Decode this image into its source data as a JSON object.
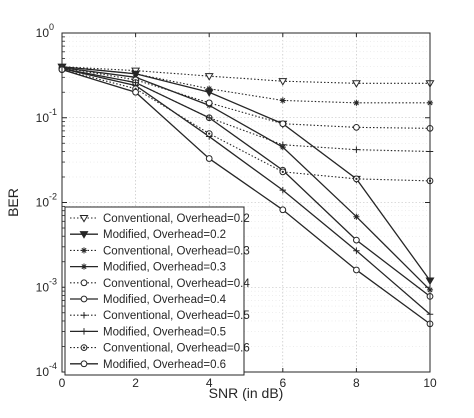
{
  "chart_data": {
    "type": "line",
    "xlabel": "SNR (in dB)",
    "ylabel": "BER",
    "xlim": [
      0,
      10
    ],
    "ylim": [
      0.0001,
      1
    ],
    "yscale": "log",
    "grid": true,
    "legend_position": "bottom-left",
    "x_ticks": [
      "0",
      "2",
      "4",
      "6",
      "8",
      "10"
    ],
    "y_ticks": [
      {
        "base": "10",
        "exp": "0",
        "value": 1
      },
      {
        "base": "10",
        "exp": "-1",
        "value": 0.1
      },
      {
        "base": "10",
        "exp": "-2",
        "value": 0.01
      },
      {
        "base": "10",
        "exp": "-3",
        "value": 0.001
      },
      {
        "base": "10",
        "exp": "-4",
        "value": 0.0001
      }
    ],
    "x": [
      0,
      2,
      4,
      6,
      8,
      10
    ],
    "series": [
      {
        "name": "Conventional, Overhead=0.2",
        "line": "dotted",
        "marker": "triangle-down-open",
        "values": [
          0.4,
          0.36,
          0.31,
          0.27,
          0.255,
          0.255
        ]
      },
      {
        "name": "Modified, Overhead=0.2",
        "line": "solid",
        "marker": "triangle-down-filled",
        "values": [
          0.4,
          0.33,
          0.2,
          0.085,
          0.019,
          0.0012
        ]
      },
      {
        "name": "Conventional, Overhead=0.3",
        "line": "dotted",
        "marker": "asterisk",
        "values": [
          0.4,
          0.33,
          0.22,
          0.16,
          0.15,
          0.15
        ]
      },
      {
        "name": "Modified, Overhead=0.3",
        "line": "solid",
        "marker": "asterisk",
        "values": [
          0.39,
          0.3,
          0.14,
          0.045,
          0.0068,
          0.00093
        ]
      },
      {
        "name": "Conventional, Overhead=0.4",
        "line": "dotted",
        "marker": "circle-open",
        "values": [
          0.39,
          0.28,
          0.15,
          0.085,
          0.077,
          0.075
        ]
      },
      {
        "name": "Modified, Overhead=0.4",
        "line": "solid",
        "marker": "circle-open",
        "values": [
          0.38,
          0.26,
          0.1,
          0.024,
          0.0036,
          0.00078
        ]
      },
      {
        "name": "Conventional, Overhead=0.5",
        "line": "dotted",
        "marker": "plus",
        "values": [
          0.38,
          0.26,
          0.1,
          0.048,
          0.042,
          0.04
        ]
      },
      {
        "name": "Modified, Overhead=0.5",
        "line": "solid",
        "marker": "plus",
        "values": [
          0.38,
          0.24,
          0.06,
          0.014,
          0.0027,
          0.00048
        ]
      },
      {
        "name": "Conventional, Overhead=0.6",
        "line": "dotted",
        "marker": "circle-dot",
        "values": [
          0.37,
          0.22,
          0.065,
          0.023,
          0.019,
          0.018
        ]
      },
      {
        "name": "Modified, Overhead=0.6",
        "line": "solid",
        "marker": "circle-open",
        "values": [
          0.37,
          0.2,
          0.033,
          0.0082,
          0.0016,
          0.00037
        ]
      }
    ]
  }
}
